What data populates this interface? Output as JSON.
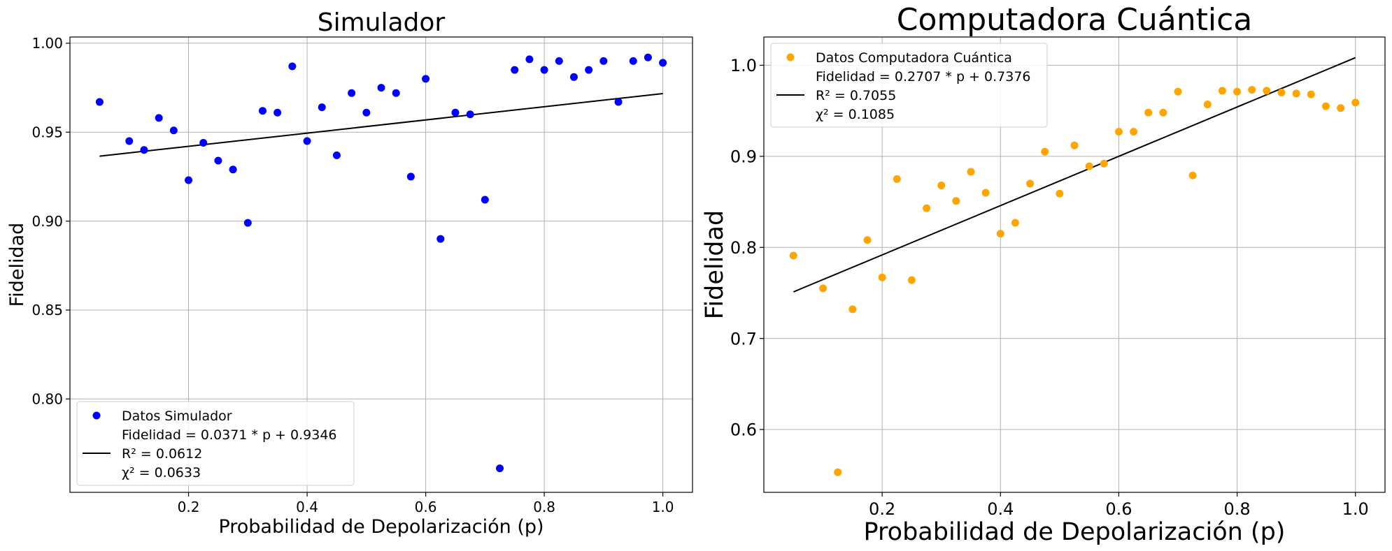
{
  "chart_data": [
    {
      "type": "scatter",
      "title": "Simulador",
      "xlabel": "Probabilidad de Depolarización (p)",
      "ylabel": "Fidelidad",
      "xlim": [
        0.0,
        1.05
      ],
      "ylim": [
        0.7475,
        1.0035
      ],
      "xticks": [
        0.2,
        0.4,
        0.6,
        0.8,
        1.0
      ],
      "xtick_labels": [
        "0.2",
        "0.4",
        "0.6",
        "0.8",
        "1.0"
      ],
      "yticks": [
        0.8,
        0.85,
        0.9,
        0.95,
        1.0
      ],
      "ytick_labels": [
        "0.80",
        "0.85",
        "0.90",
        "0.95",
        "1.00"
      ],
      "grid": true,
      "legend_position": "lower-left",
      "series": [
        {
          "name": "Datos Simulador",
          "kind": "points",
          "color": "#0000ff",
          "x": [
            0.05,
            0.1,
            0.125,
            0.15,
            0.175,
            0.2,
            0.225,
            0.25,
            0.275,
            0.3,
            0.325,
            0.35,
            0.375,
            0.4,
            0.425,
            0.45,
            0.475,
            0.5,
            0.525,
            0.55,
            0.575,
            0.6,
            0.625,
            0.65,
            0.675,
            0.7,
            0.725,
            0.75,
            0.775,
            0.8,
            0.825,
            0.85,
            0.875,
            0.9,
            0.925,
            0.95,
            0.975,
            1.0
          ],
          "y": [
            0.967,
            0.945,
            0.94,
            0.958,
            0.951,
            0.923,
            0.944,
            0.934,
            0.929,
            0.899,
            0.962,
            0.961,
            0.987,
            0.945,
            0.964,
            0.937,
            0.972,
            0.961,
            0.975,
            0.972,
            0.925,
            0.98,
            0.89,
            0.961,
            0.96,
            0.912,
            0.761,
            0.985,
            0.991,
            0.985,
            0.99,
            0.981,
            0.985,
            0.99,
            0.967,
            0.99,
            0.992,
            0.989
          ]
        },
        {
          "name": "fit",
          "kind": "line",
          "color": "#000000",
          "x": [
            0.05,
            1.0
          ],
          "y": [
            0.9365,
            0.9717
          ]
        }
      ],
      "legend_entries": [
        {
          "marker": "point",
          "color": "#0000ff",
          "lines": [
            "Datos Simulador"
          ]
        },
        {
          "marker": "line",
          "color": "#000000",
          "lines": [
            "Fidelidad = 0.0371 * p + 0.9346",
            "R² = 0.0612",
            "χ² = 0.0633"
          ]
        }
      ]
    },
    {
      "type": "scatter",
      "title": "Computadora Cuántica",
      "xlabel": "Probabilidad de Depolarización (p)",
      "ylabel": "Fidelidad",
      "xlim": [
        0.0,
        1.05
      ],
      "ylim": [
        0.531,
        1.031
      ],
      "xticks": [
        0.2,
        0.4,
        0.6,
        0.8,
        1.0
      ],
      "xtick_labels": [
        "0.2",
        "0.4",
        "0.6",
        "0.8",
        "1.0"
      ],
      "yticks": [
        0.6,
        0.7,
        0.8,
        0.9,
        1.0
      ],
      "ytick_labels": [
        "0.6",
        "0.7",
        "0.8",
        "0.9",
        "1.0"
      ],
      "grid": true,
      "legend_position": "upper-left",
      "series": [
        {
          "name": "Datos Computadora Cuántica",
          "kind": "points",
          "color": "#ffa500",
          "x": [
            0.05,
            0.1,
            0.125,
            0.15,
            0.175,
            0.2,
            0.225,
            0.25,
            0.275,
            0.3,
            0.325,
            0.35,
            0.375,
            0.4,
            0.425,
            0.45,
            0.475,
            0.5,
            0.525,
            0.55,
            0.575,
            0.6,
            0.625,
            0.65,
            0.675,
            0.7,
            0.725,
            0.75,
            0.775,
            0.8,
            0.825,
            0.85,
            0.875,
            0.9,
            0.925,
            0.95,
            0.975,
            1.0
          ],
          "y": [
            0.791,
            0.755,
            0.553,
            0.732,
            0.808,
            0.767,
            0.875,
            0.764,
            0.843,
            0.868,
            0.851,
            0.883,
            0.86,
            0.815,
            0.827,
            0.87,
            0.905,
            0.859,
            0.912,
            0.889,
            0.892,
            0.927,
            0.927,
            0.948,
            0.948,
            0.971,
            0.879,
            0.957,
            0.972,
            0.971,
            0.973,
            0.972,
            0.97,
            0.969,
            0.968,
            0.955,
            0.953,
            0.959
          ]
        },
        {
          "name": "fit",
          "kind": "line",
          "color": "#000000",
          "x": [
            0.05,
            1.0
          ],
          "y": [
            0.7511,
            1.0083
          ]
        }
      ],
      "legend_entries": [
        {
          "marker": "point",
          "color": "#ffa500",
          "lines": [
            "Datos Computadora Cuántica"
          ]
        },
        {
          "marker": "line",
          "color": "#000000",
          "lines": [
            "Fidelidad = 0.2707 * p + 0.7376",
            "R² = 0.7055",
            "χ² = 0.1085"
          ]
        }
      ]
    }
  ]
}
